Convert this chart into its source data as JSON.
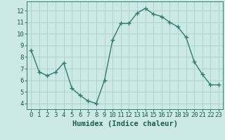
{
  "x": [
    0,
    1,
    2,
    3,
    4,
    5,
    6,
    7,
    8,
    9,
    10,
    11,
    12,
    13,
    14,
    15,
    16,
    17,
    18,
    19,
    20,
    21,
    22,
    23
  ],
  "y": [
    8.6,
    6.7,
    6.4,
    6.7,
    7.5,
    5.3,
    4.7,
    4.2,
    4.0,
    6.0,
    9.5,
    10.9,
    10.9,
    11.8,
    12.2,
    11.7,
    11.5,
    11.0,
    10.6,
    9.7,
    7.6,
    6.5,
    5.6,
    5.6
  ],
  "line_color": "#2e7d6e",
  "marker": "+",
  "markersize": 4,
  "markeredgewidth": 1.0,
  "linewidth": 1.0,
  "bg_color": "#cce9e7",
  "grid_color": "#aacfcd",
  "xlabel": "Humidex (Indice chaleur)",
  "xlabel_color": "#1a5c50",
  "tick_color": "#1a5c50",
  "spine_color": "#2e7d6e",
  "ylim": [
    3.5,
    12.8
  ],
  "xlim": [
    -0.5,
    23.5
  ],
  "yticks": [
    4,
    5,
    6,
    7,
    8,
    9,
    10,
    11,
    12
  ],
  "xticks": [
    0,
    1,
    2,
    3,
    4,
    5,
    6,
    7,
    8,
    9,
    10,
    11,
    12,
    13,
    14,
    15,
    16,
    17,
    18,
    19,
    20,
    21,
    22,
    23
  ],
  "xlabel_fontsize": 7.5,
  "tick_fontsize": 6.5
}
